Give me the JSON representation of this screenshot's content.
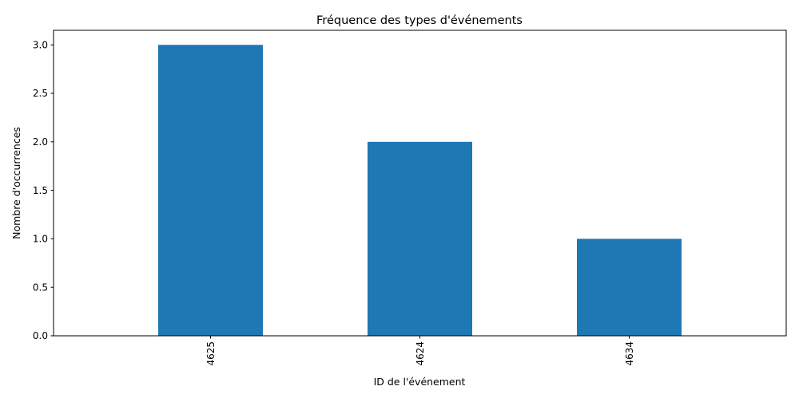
{
  "chart_data": {
    "type": "bar",
    "title": "Fréquence des types d'événements",
    "xlabel": "ID de l'événement",
    "ylabel": "Nombre d'occurrences",
    "categories": [
      "4625",
      "4624",
      "4634"
    ],
    "values": [
      3,
      2,
      1
    ],
    "ylim": [
      0,
      3.15
    ],
    "yticks": [
      "0.0",
      "0.5",
      "1.0",
      "1.5",
      "2.0",
      "2.5",
      "3.0"
    ],
    "grid": false,
    "legend": "none",
    "bar_color": "#1f77b4"
  }
}
